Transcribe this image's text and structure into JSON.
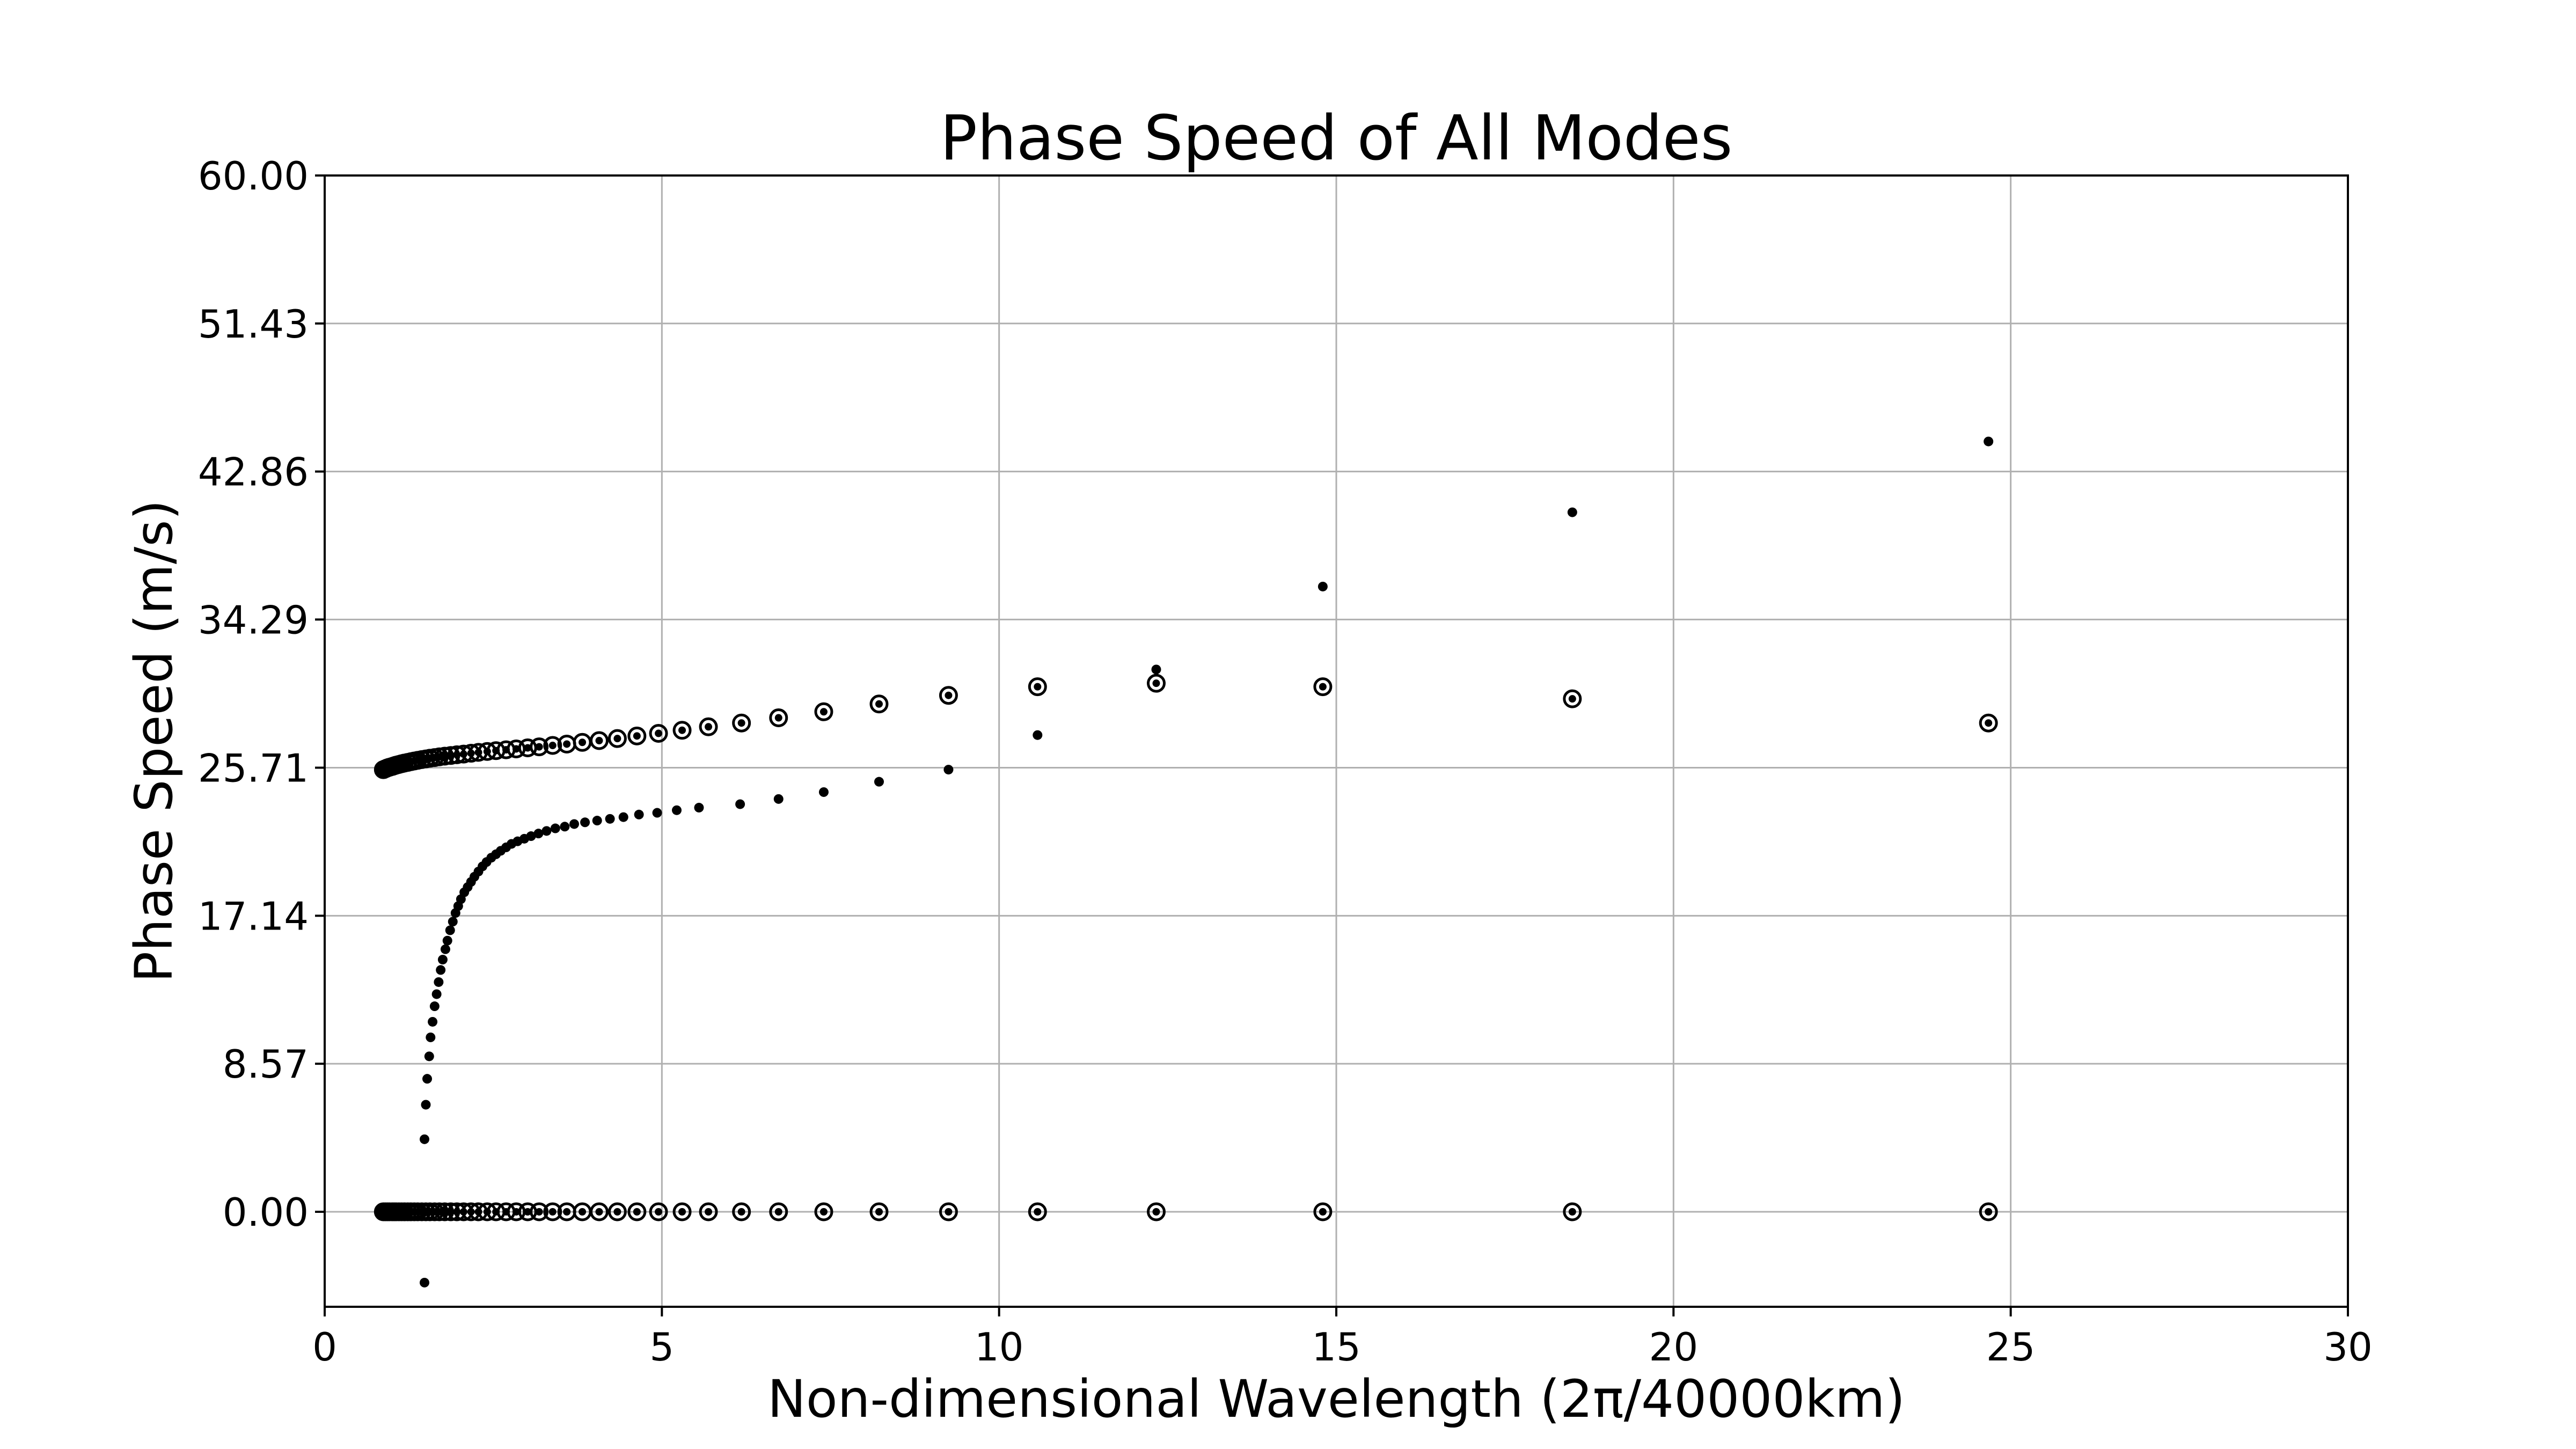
{
  "chart_data": {
    "type": "scatter",
    "title": "Phase Speed of All Modes",
    "xlabel": "Non-dimensional Wavelength (2π/40000km)",
    "ylabel": "Phase Speed (m/s)",
    "xlim": [
      0,
      30
    ],
    "ylim": [
      -5.5,
      60
    ],
    "xticks": [
      0,
      5,
      10,
      15,
      20,
      25,
      30
    ],
    "xtick_labels": [
      "0",
      "5",
      "10",
      "15",
      "20",
      "25",
      "30"
    ],
    "yticks": [
      0,
      8.57,
      17.14,
      25.71,
      34.29,
      42.86,
      51.43,
      60
    ],
    "ytick_labels": [
      "0.00",
      "8.57",
      "17.14",
      "25.71",
      "34.29",
      "42.86",
      "51.43",
      "60.00"
    ],
    "grid": true,
    "marker_color": "#000000",
    "series": [
      {
        "marker": "ring",
        "x": [
          0.87,
          0.9,
          0.93,
          0.96,
          1.0,
          1.03,
          1.06,
          1.1,
          1.14,
          1.18,
          1.23,
          1.28,
          1.33,
          1.38,
          1.44,
          1.5,
          1.56,
          1.63,
          1.7,
          1.78,
          1.87,
          1.96,
          2.06,
          2.17,
          2.28,
          2.41,
          2.54,
          2.69,
          2.84,
          3.01,
          3.18,
          3.38,
          3.59,
          3.82,
          4.07,
          4.34,
          4.63,
          4.95,
          5.3,
          5.69,
          6.18,
          6.73,
          7.4,
          8.22,
          9.25,
          10.57,
          12.33,
          14.8,
          18.5,
          24.67
        ],
        "y": [
          25.6,
          25.65,
          25.7,
          25.74,
          25.78,
          25.82,
          25.86,
          25.9,
          25.94,
          25.98,
          26.02,
          26.06,
          26.1,
          26.14,
          26.18,
          26.22,
          26.26,
          26.3,
          26.34,
          26.38,
          26.42,
          26.46,
          26.5,
          26.55,
          26.6,
          26.65,
          26.7,
          26.75,
          26.8,
          26.86,
          26.92,
          27.0,
          27.08,
          27.18,
          27.28,
          27.4,
          27.55,
          27.7,
          27.88,
          28.08,
          28.3,
          28.6,
          28.95,
          29.4,
          29.9,
          30.4,
          30.6,
          30.4,
          29.7,
          28.3
        ]
      },
      {
        "marker": "dot",
        "x": [
          1.48,
          1.5,
          1.52,
          1.55,
          1.57,
          1.6,
          1.63,
          1.66,
          1.69,
          1.72,
          1.75,
          1.79,
          1.82,
          1.86,
          1.9,
          1.94,
          1.98,
          2.02,
          2.07,
          2.12,
          2.17,
          2.22,
          2.28,
          2.34,
          2.4,
          2.47,
          2.54,
          2.61,
          2.69,
          2.77,
          2.86,
          2.96,
          3.06,
          3.17,
          3.29,
          3.42,
          3.56,
          3.7,
          3.86,
          4.04,
          4.23,
          4.43,
          4.66,
          4.93,
          5.22,
          5.55,
          6.16,
          6.73,
          7.4,
          8.22,
          9.25,
          10.57,
          12.33,
          14.8,
          18.5,
          24.67
        ],
        "y": [
          4.2,
          6.2,
          7.7,
          9.0,
          10.1,
          11.0,
          11.9,
          12.6,
          13.3,
          14.0,
          14.6,
          15.2,
          15.7,
          16.3,
          16.8,
          17.3,
          17.7,
          18.1,
          18.5,
          18.8,
          19.1,
          19.4,
          19.7,
          20.0,
          20.25,
          20.5,
          20.7,
          20.9,
          21.1,
          21.3,
          21.45,
          21.6,
          21.75,
          21.9,
          22.05,
          22.2,
          22.3,
          22.45,
          22.55,
          22.65,
          22.75,
          22.85,
          23.0,
          23.1,
          23.25,
          23.4,
          23.6,
          23.9,
          24.3,
          24.9,
          25.6,
          27.6,
          31.4,
          36.2,
          40.5,
          44.6
        ]
      },
      {
        "marker": "ring",
        "x": [
          0.87,
          0.9,
          0.93,
          0.96,
          1.0,
          1.03,
          1.06,
          1.1,
          1.14,
          1.18,
          1.23,
          1.28,
          1.33,
          1.38,
          1.44,
          1.5,
          1.56,
          1.63,
          1.7,
          1.78,
          1.87,
          1.96,
          2.06,
          2.17,
          2.28,
          2.41,
          2.54,
          2.69,
          2.84,
          3.01,
          3.18,
          3.38,
          3.59,
          3.82,
          4.07,
          4.34,
          4.63,
          4.95,
          5.3,
          5.69,
          6.18,
          6.73,
          7.4,
          8.22,
          9.25,
          10.57,
          12.33,
          14.8,
          18.5,
          24.67
        ],
        "y": [
          0,
          0,
          0,
          0,
          0,
          0,
          0,
          0,
          0,
          0,
          0,
          0,
          0,
          0,
          0,
          0,
          0,
          0,
          0,
          0,
          0,
          0,
          0,
          0,
          0,
          0,
          0,
          0,
          0,
          0,
          0,
          0,
          0,
          0,
          0,
          0,
          0,
          0,
          0,
          0,
          0,
          0,
          0,
          0,
          0,
          0,
          0,
          0,
          0,
          0
        ]
      },
      {
        "marker": "dot",
        "x": [
          1.48
        ],
        "y": [
          -4.1
        ]
      }
    ]
  }
}
